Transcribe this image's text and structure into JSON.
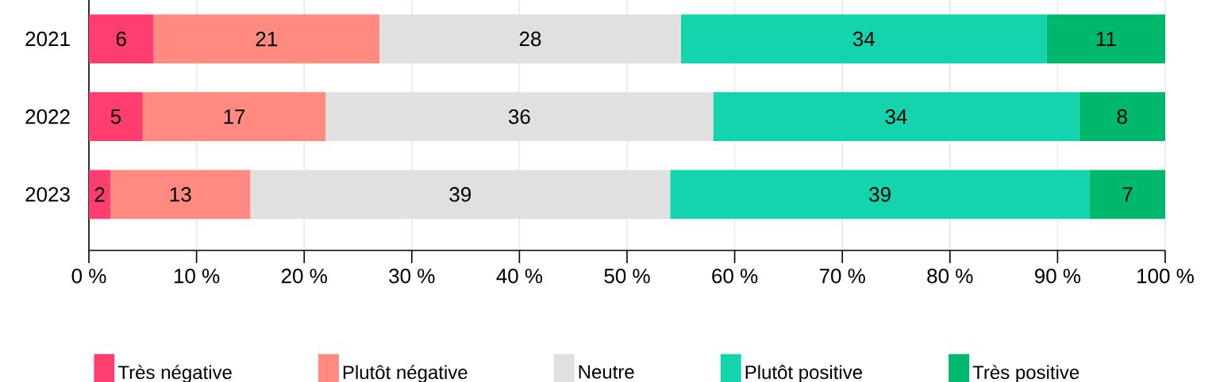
{
  "chart_data": {
    "type": "bar",
    "orientation": "horizontal",
    "stacked": true,
    "data_labels": true,
    "grid": "x",
    "legend": "bottom",
    "categories": [
      "2021",
      "2022",
      "2023"
    ],
    "xlim": [
      0,
      100
    ],
    "xticks": [
      {
        "value": 0,
        "label": "0 %"
      },
      {
        "value": 10,
        "label": "10 %"
      },
      {
        "value": 20,
        "label": "20 %"
      },
      {
        "value": 30,
        "label": "30 %"
      },
      {
        "value": 40,
        "label": "40 %"
      },
      {
        "value": 50,
        "label": "50 %"
      },
      {
        "value": 60,
        "label": "60 %"
      },
      {
        "value": 70,
        "label": "70 %"
      },
      {
        "value": 80,
        "label": "80 %"
      },
      {
        "value": 90,
        "label": "90 %"
      },
      {
        "value": 100,
        "label": "100 %"
      }
    ],
    "series": [
      {
        "name": "Très négative",
        "color": "#ff3d6e",
        "values": [
          6,
          5,
          2
        ]
      },
      {
        "name": "Plutôt négative",
        "color": "#ff8a82",
        "values": [
          21,
          17,
          13
        ]
      },
      {
        "name": "Neutre",
        "color": "#e0e0e0",
        "values": [
          28,
          36,
          39
        ]
      },
      {
        "name": "Plutôt positive",
        "color": "#14d4ae",
        "values": [
          34,
          34,
          39
        ]
      },
      {
        "name": "Très positive",
        "color": "#00b86b",
        "values": [
          11,
          8,
          7
        ]
      }
    ]
  }
}
